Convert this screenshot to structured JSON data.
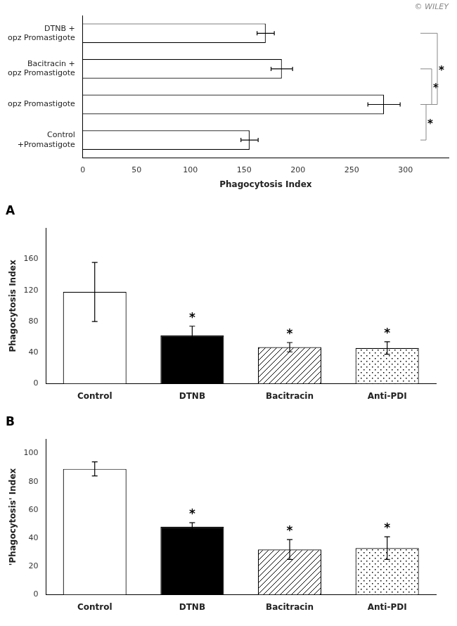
{
  "chart_data": [
    {
      "type": "bar",
      "orientation": "horizontal",
      "categories": [
        "Control\n+Promastigote",
        "opz Promastigote",
        "Bacitracin +\nopz Promastigote",
        "DTNB +\nopz Promastigote"
      ],
      "values": [
        155,
        280,
        185,
        170
      ],
      "errors": [
        8,
        15,
        10,
        8
      ],
      "color": "white",
      "xlabel": "Phagocytosis Index",
      "xlim": [
        0,
        340
      ],
      "xticks": [
        0,
        50,
        100,
        150,
        200,
        250,
        300
      ],
      "grid": false,
      "annotations": [
        {
          "from": "opz Promastigote",
          "to": "Control\n+Promastigote",
          "text": "*"
        },
        {
          "from": "opz Promastigote",
          "to": "Bacitracin +\nopz Promastigote",
          "text": "*"
        },
        {
          "from": "opz Promastigote",
          "to": "DTNB +\nopz Promastigote",
          "text": "*"
        },
        {
          "text": "© WILEY"
        }
      ]
    },
    {
      "type": "bar",
      "title": "A",
      "categories": [
        "Control",
        "DTNB",
        "Bacitracin",
        "Anti-PDI"
      ],
      "values": [
        118,
        62,
        47,
        46
      ],
      "errors": [
        38,
        12,
        6,
        8
      ],
      "colors": [
        "white",
        "black",
        "white",
        "white"
      ],
      "ylabel": "Phagocytosis Index",
      "ylim": [
        0,
        200
      ],
      "yticks": [
        0,
        40,
        80,
        120,
        160
      ],
      "grid": false,
      "annotations": [
        {
          "category": "DTNB",
          "text": "*"
        },
        {
          "category": "Bacitracin",
          "text": "*"
        },
        {
          "category": "Anti-PDI",
          "text": "*"
        }
      ]
    },
    {
      "type": "bar",
      "title": "B",
      "categories": [
        "Control",
        "DTNB",
        "Bacitracin",
        "Anti-PDI"
      ],
      "values": [
        89,
        48,
        32,
        33
      ],
      "errors": [
        5,
        3,
        7,
        8
      ],
      "colors": [
        "white",
        "black",
        "white",
        "white"
      ],
      "ylabel": "'Phagocytosis' Index",
      "ylim": [
        0,
        110
      ],
      "yticks": [
        0,
        20,
        40,
        60,
        80,
        100
      ],
      "grid": false,
      "annotations": [
        {
          "category": "DTNB",
          "text": "*"
        },
        {
          "category": "Bacitracin",
          "text": "*"
        },
        {
          "category": "Anti-PDI",
          "text": "*"
        }
      ]
    }
  ]
}
